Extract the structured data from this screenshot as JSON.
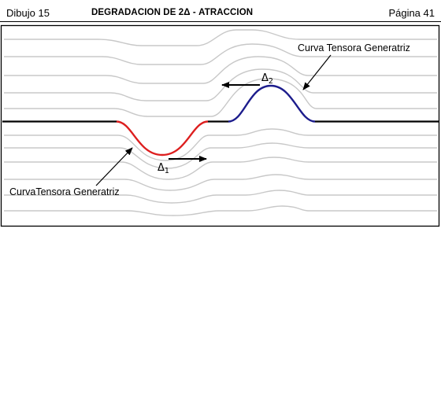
{
  "header": {
    "left": "Dibujo 15",
    "title": "DEGRADACION DE 2Δ - ATRACCION",
    "right": "Página 41"
  },
  "labels": {
    "curve_top": "Curva Tensora Generatriz",
    "curve_bottom": "CurvaTensora Generatriz",
    "delta1_symbol": "Δ",
    "delta1_sub": "1",
    "delta2_symbol": "Δ",
    "delta2_sub": "2"
  },
  "colors": {
    "gray_lines": "#c8c8c8",
    "main_line": "#000000",
    "red_curve": "#dd1f1f",
    "blue_curve": "#1c1c8c"
  }
}
